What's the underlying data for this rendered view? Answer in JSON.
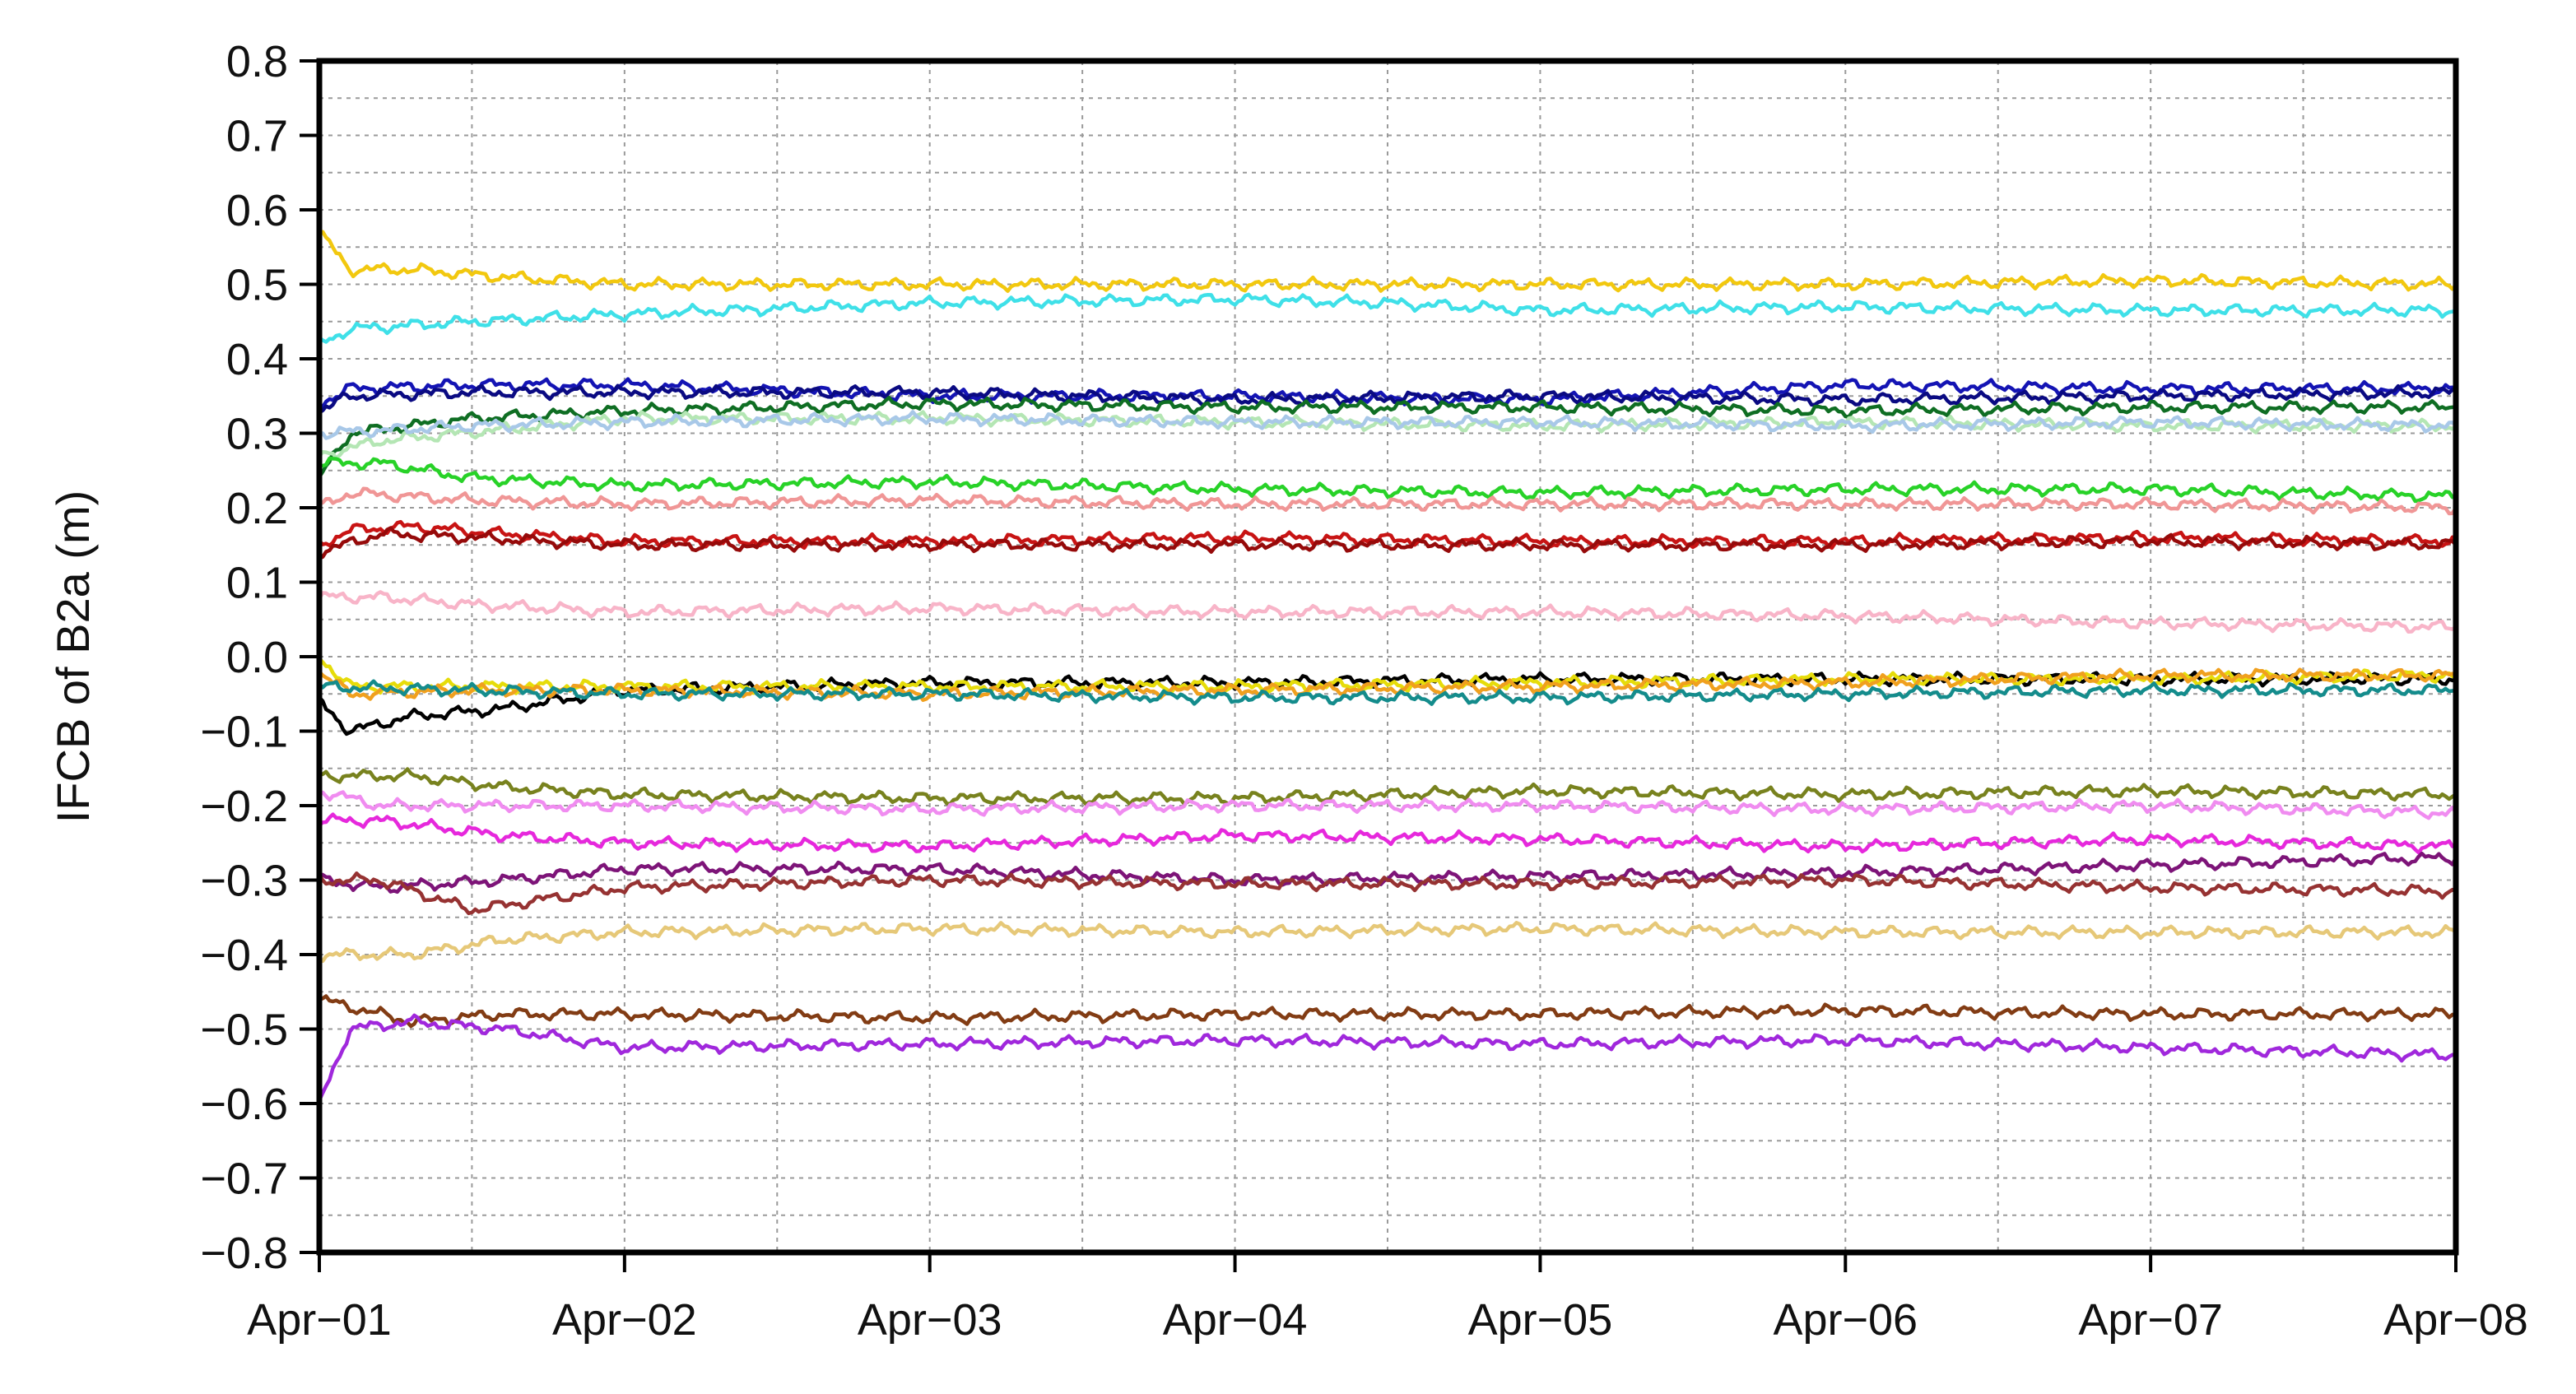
{
  "chart_data": {
    "type": "line",
    "title": "",
    "xlabel": "",
    "ylabel": "IFCB of B2a (m)",
    "x_ticks": [
      "Apr−01",
      "Apr−02",
      "Apr−03",
      "Apr−04",
      "Apr−05",
      "Apr−06",
      "Apr−07",
      "Apr−08"
    ],
    "xlim": [
      0,
      7
    ],
    "x_minor_grid_step": 0.5,
    "y_ticks": [
      "0.8",
      "0.7",
      "0.6",
      "0.5",
      "0.4",
      "0.3",
      "0.2",
      "0.1",
      "0.0",
      "−0.1",
      "−0.2",
      "−0.3",
      "−0.4",
      "−0.5",
      "−0.6",
      "−0.7",
      "−0.8"
    ],
    "ylim": [
      -0.8,
      0.8
    ],
    "y_minor_grid_step": 0.05,
    "grid": true,
    "legend": "none",
    "series": [
      {
        "color": "#f2c80f",
        "values": [
          [
            0,
            0.57
          ],
          [
            0.1,
            0.52
          ],
          [
            0.3,
            0.52
          ],
          [
            0.6,
            0.51
          ],
          [
            1,
            0.5
          ],
          [
            2,
            0.5
          ],
          [
            3,
            0.5
          ],
          [
            4,
            0.5
          ],
          [
            5,
            0.5
          ],
          [
            6,
            0.505
          ],
          [
            7,
            0.5
          ]
        ]
      },
      {
        "color": "#3fe0e8",
        "values": [
          [
            0,
            0.42
          ],
          [
            0.1,
            0.44
          ],
          [
            0.5,
            0.45
          ],
          [
            1,
            0.46
          ],
          [
            2,
            0.475
          ],
          [
            3,
            0.48
          ],
          [
            3.5,
            0.475
          ],
          [
            4,
            0.465
          ],
          [
            5,
            0.47
          ],
          [
            6,
            0.465
          ],
          [
            7,
            0.465
          ]
        ]
      },
      {
        "color": "#1414b4",
        "values": [
          [
            0,
            0.34
          ],
          [
            0.1,
            0.36
          ],
          [
            0.5,
            0.365
          ],
          [
            1,
            0.365
          ],
          [
            2,
            0.35
          ],
          [
            3,
            0.35
          ],
          [
            4,
            0.345
          ],
          [
            5,
            0.365
          ],
          [
            6,
            0.36
          ],
          [
            7,
            0.36
          ]
        ]
      },
      {
        "color": "#0a0a82",
        "values": [
          [
            0,
            0.33
          ],
          [
            0.1,
            0.35
          ],
          [
            0.5,
            0.355
          ],
          [
            1,
            0.355
          ],
          [
            2,
            0.355
          ],
          [
            3,
            0.345
          ],
          [
            4,
            0.35
          ],
          [
            5,
            0.345
          ],
          [
            6,
            0.35
          ],
          [
            7,
            0.355
          ]
        ]
      },
      {
        "color": "#0f6e23",
        "values": [
          [
            0,
            0.24
          ],
          [
            0.1,
            0.3
          ],
          [
            0.5,
            0.32
          ],
          [
            1,
            0.33
          ],
          [
            2,
            0.34
          ],
          [
            3,
            0.335
          ],
          [
            4,
            0.335
          ],
          [
            5,
            0.33
          ],
          [
            6,
            0.335
          ],
          [
            7,
            0.335
          ]
        ]
      },
      {
        "color": "#b4e6b4",
        "values": [
          [
            0,
            0.27
          ],
          [
            0.2,
            0.29
          ],
          [
            1,
            0.32
          ],
          [
            2,
            0.32
          ],
          [
            3,
            0.315
          ],
          [
            4,
            0.31
          ],
          [
            5,
            0.315
          ],
          [
            6,
            0.31
          ],
          [
            7,
            0.31
          ]
        ]
      },
      {
        "color": "#a8c8e8",
        "values": [
          [
            0,
            0.3
          ],
          [
            0.5,
            0.31
          ],
          [
            1,
            0.315
          ],
          [
            2,
            0.32
          ],
          [
            3,
            0.315
          ],
          [
            4,
            0.315
          ],
          [
            5,
            0.31
          ],
          [
            6,
            0.315
          ],
          [
            7,
            0.31
          ]
        ]
      },
      {
        "color": "#28d228",
        "values": [
          [
            0,
            0.26
          ],
          [
            0.2,
            0.26
          ],
          [
            0.5,
            0.24
          ],
          [
            1,
            0.23
          ],
          [
            2,
            0.235
          ],
          [
            3,
            0.225
          ],
          [
            4,
            0.22
          ],
          [
            5,
            0.225
          ],
          [
            6,
            0.225
          ],
          [
            7,
            0.215
          ]
        ]
      },
      {
        "color": "#f09696",
        "values": [
          [
            0,
            0.2
          ],
          [
            0.1,
            0.22
          ],
          [
            0.5,
            0.21
          ],
          [
            1,
            0.205
          ],
          [
            2,
            0.21
          ],
          [
            3,
            0.205
          ],
          [
            4,
            0.205
          ],
          [
            5,
            0.205
          ],
          [
            6,
            0.205
          ],
          [
            7,
            0.2
          ]
        ]
      },
      {
        "color": "#c81414",
        "values": [
          [
            0,
            0.15
          ],
          [
            0.1,
            0.17
          ],
          [
            0.3,
            0.175
          ],
          [
            0.6,
            0.165
          ],
          [
            1,
            0.155
          ],
          [
            2,
            0.155
          ],
          [
            3,
            0.16
          ],
          [
            4,
            0.155
          ],
          [
            5,
            0.155
          ],
          [
            6,
            0.16
          ],
          [
            7,
            0.155
          ]
        ]
      },
      {
        "color": "#960a0a",
        "values": [
          [
            0,
            0.14
          ],
          [
            0.2,
            0.165
          ],
          [
            0.5,
            0.16
          ],
          [
            1,
            0.15
          ],
          [
            2,
            0.15
          ],
          [
            3,
            0.15
          ],
          [
            4,
            0.15
          ],
          [
            5,
            0.15
          ],
          [
            6,
            0.155
          ],
          [
            7,
            0.15
          ]
        ]
      },
      {
        "color": "#f8b4c8",
        "values": [
          [
            0,
            0.08
          ],
          [
            0.2,
            0.08
          ],
          [
            0.5,
            0.07
          ],
          [
            1,
            0.06
          ],
          [
            2,
            0.065
          ],
          [
            3,
            0.06
          ],
          [
            4,
            0.06
          ],
          [
            5,
            0.055
          ],
          [
            6,
            0.045
          ],
          [
            7,
            0.04
          ]
        ]
      },
      {
        "color": "#000000",
        "values": [
          [
            0,
            -0.06
          ],
          [
            0.1,
            -0.1
          ],
          [
            0.3,
            -0.08
          ],
          [
            0.6,
            -0.07
          ],
          [
            1,
            -0.045
          ],
          [
            2,
            -0.035
          ],
          [
            3,
            -0.035
          ],
          [
            4,
            -0.03
          ],
          [
            5,
            -0.03
          ],
          [
            6,
            -0.03
          ],
          [
            7,
            -0.03
          ]
        ]
      },
      {
        "color": "#e6dc0a",
        "values": [
          [
            0,
            0.0
          ],
          [
            0.1,
            -0.04
          ],
          [
            0.3,
            -0.04
          ],
          [
            1,
            -0.04
          ],
          [
            2,
            -0.04
          ],
          [
            3,
            -0.04
          ],
          [
            4,
            -0.035
          ],
          [
            5,
            -0.03
          ],
          [
            6,
            -0.03
          ],
          [
            7,
            -0.025
          ]
        ]
      },
      {
        "color": "#f0a01e",
        "values": [
          [
            0,
            -0.02
          ],
          [
            0.1,
            -0.05
          ],
          [
            0.5,
            -0.045
          ],
          [
            1,
            -0.045
          ],
          [
            2,
            -0.05
          ],
          [
            3,
            -0.045
          ],
          [
            4,
            -0.04
          ],
          [
            5,
            -0.035
          ],
          [
            6,
            -0.025
          ],
          [
            7,
            -0.025
          ]
        ]
      },
      {
        "color": "#148c8c",
        "values": [
          [
            0,
            -0.04
          ],
          [
            0.5,
            -0.045
          ],
          [
            1,
            -0.05
          ],
          [
            2,
            -0.05
          ],
          [
            3,
            -0.055
          ],
          [
            4,
            -0.055
          ],
          [
            5,
            -0.05
          ],
          [
            6,
            -0.045
          ],
          [
            7,
            -0.045
          ]
        ]
      },
      {
        "color": "#78821e",
        "values": [
          [
            0,
            -0.16
          ],
          [
            0.3,
            -0.16
          ],
          [
            0.6,
            -0.175
          ],
          [
            1,
            -0.185
          ],
          [
            2,
            -0.19
          ],
          [
            3,
            -0.19
          ],
          [
            4,
            -0.18
          ],
          [
            5,
            -0.185
          ],
          [
            6,
            -0.18
          ],
          [
            7,
            -0.185
          ]
        ]
      },
      {
        "color": "#f08cf0",
        "values": [
          [
            0,
            -0.18
          ],
          [
            0.2,
            -0.2
          ],
          [
            0.6,
            -0.2
          ],
          [
            1,
            -0.2
          ],
          [
            2,
            -0.205
          ],
          [
            3,
            -0.2
          ],
          [
            4,
            -0.2
          ],
          [
            5,
            -0.205
          ],
          [
            6,
            -0.2
          ],
          [
            7,
            -0.21
          ]
        ]
      },
      {
        "color": "#e628dc",
        "values": [
          [
            0,
            -0.22
          ],
          [
            0.2,
            -0.22
          ],
          [
            0.6,
            -0.24
          ],
          [
            1,
            -0.25
          ],
          [
            2,
            -0.255
          ],
          [
            3,
            -0.24
          ],
          [
            4,
            -0.245
          ],
          [
            5,
            -0.255
          ],
          [
            6,
            -0.245
          ],
          [
            7,
            -0.255
          ]
        ]
      },
      {
        "color": "#7d1478",
        "values": [
          [
            0,
            -0.3
          ],
          [
            0.2,
            -0.31
          ],
          [
            0.6,
            -0.3
          ],
          [
            1,
            -0.285
          ],
          [
            2,
            -0.285
          ],
          [
            3,
            -0.3
          ],
          [
            4,
            -0.295
          ],
          [
            5,
            -0.29
          ],
          [
            6,
            -0.28
          ],
          [
            7,
            -0.27
          ]
        ]
      },
      {
        "color": "#963232",
        "values": [
          [
            0,
            -0.3
          ],
          [
            0.2,
            -0.3
          ],
          [
            0.5,
            -0.34
          ],
          [
            1,
            -0.31
          ],
          [
            2,
            -0.3
          ],
          [
            3,
            -0.305
          ],
          [
            4,
            -0.305
          ],
          [
            5,
            -0.3
          ],
          [
            6,
            -0.31
          ],
          [
            7,
            -0.315
          ]
        ]
      },
      {
        "color": "#e6c878",
        "values": [
          [
            0,
            -0.4
          ],
          [
            0.3,
            -0.4
          ],
          [
            0.6,
            -0.38
          ],
          [
            1,
            -0.37
          ],
          [
            2,
            -0.365
          ],
          [
            3,
            -0.37
          ],
          [
            4,
            -0.365
          ],
          [
            5,
            -0.37
          ],
          [
            6,
            -0.37
          ],
          [
            7,
            -0.37
          ]
        ]
      },
      {
        "color": "#823c14",
        "values": [
          [
            0,
            -0.46
          ],
          [
            0.3,
            -0.49
          ],
          [
            0.6,
            -0.48
          ],
          [
            1,
            -0.48
          ],
          [
            2,
            -0.485
          ],
          [
            3,
            -0.48
          ],
          [
            4,
            -0.48
          ],
          [
            5,
            -0.475
          ],
          [
            6,
            -0.48
          ],
          [
            7,
            -0.48
          ]
        ]
      },
      {
        "color": "#a028dc",
        "values": [
          [
            0,
            -0.6
          ],
          [
            0.1,
            -0.5
          ],
          [
            0.3,
            -0.49
          ],
          [
            0.6,
            -0.5
          ],
          [
            1,
            -0.525
          ],
          [
            2,
            -0.52
          ],
          [
            3,
            -0.515
          ],
          [
            4,
            -0.52
          ],
          [
            5,
            -0.515
          ],
          [
            6,
            -0.525
          ],
          [
            7,
            -0.535
          ]
        ]
      }
    ]
  }
}
